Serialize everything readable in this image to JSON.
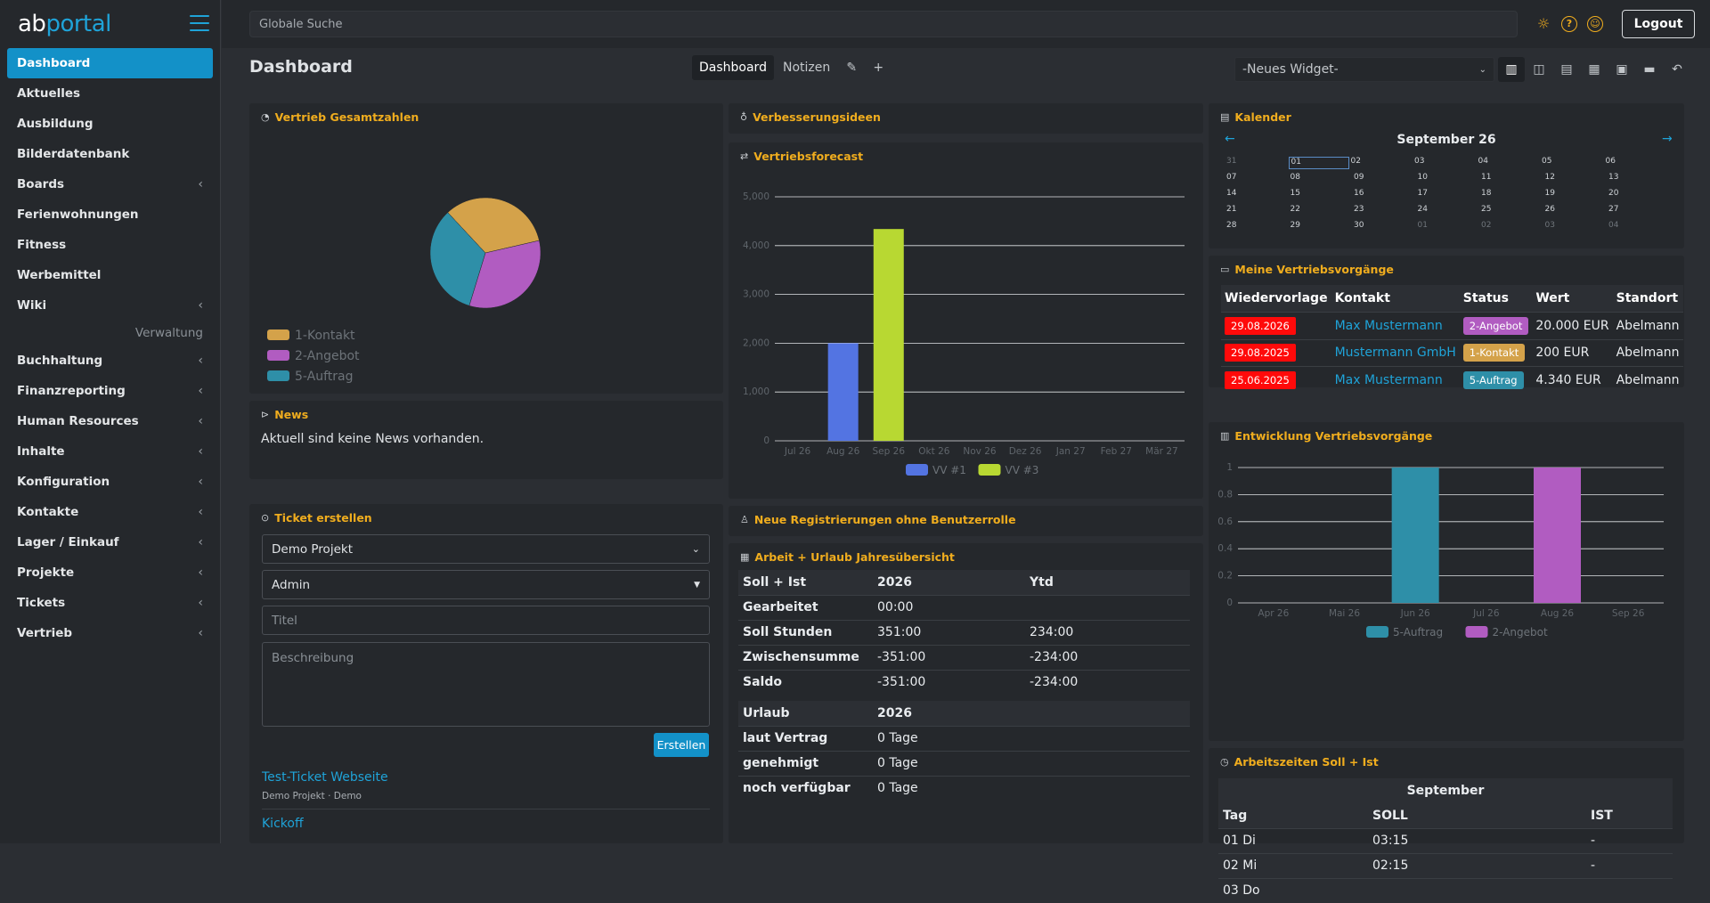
{
  "brand": {
    "part1": "ab",
    "part2": "portal"
  },
  "nav": {
    "items": [
      {
        "label": "Dashboard",
        "active": true,
        "chevron": false
      },
      {
        "label": "Aktuelles",
        "chevron": false
      },
      {
        "label": "Ausbildung",
        "chevron": false
      },
      {
        "label": "Bilderdatenbank",
        "chevron": false
      },
      {
        "label": "Boards",
        "chevron": true
      },
      {
        "label": "Ferienwohnungen",
        "chevron": false
      },
      {
        "label": "Fitness",
        "chevron": false
      },
      {
        "label": "Werbemittel",
        "chevron": false
      },
      {
        "label": "Wiki",
        "chevron": true
      }
    ],
    "section_label": "Verwaltung",
    "admin_items": [
      {
        "label": "Buchhaltung"
      },
      {
        "label": "Finanzreporting"
      },
      {
        "label": "Human Resources"
      },
      {
        "label": "Inhalte"
      },
      {
        "label": "Konfiguration"
      },
      {
        "label": "Kontakte"
      },
      {
        "label": "Lager / Einkauf"
      },
      {
        "label": "Projekte"
      },
      {
        "label": "Tickets"
      },
      {
        "label": "Vertrieb"
      }
    ]
  },
  "topbar": {
    "search_placeholder": "Globale Suche",
    "logout_label": "Logout"
  },
  "header": {
    "title": "Dashboard",
    "tabs": [
      {
        "label": "Dashboard",
        "active": true
      },
      {
        "label": "Notizen"
      }
    ],
    "widget_select": "-Neues Widget-"
  },
  "widgets": {
    "vertrieb_gesamt": {
      "title": "Vertrieb Gesamtzahlen"
    },
    "news": {
      "title": "News",
      "text": "Aktuell sind keine News vorhanden."
    },
    "ticket": {
      "title": "Ticket erstellen",
      "project": "Demo Projekt",
      "assignee": "Admin",
      "title_placeholder": "Titel",
      "desc_placeholder": "Beschreibung",
      "submit_label": "Erstellen",
      "entries": [
        {
          "title": "Test-Ticket Webseite",
          "meta": "Demo Projekt · Demo"
        },
        {
          "title": "Kickoff",
          "meta": ""
        }
      ]
    },
    "verbesserungsideen": {
      "title": "Verbesserungsideen"
    },
    "forecast": {
      "title": "Vertriebsforecast"
    },
    "registrierungen": {
      "title": "Neue Registrierungen ohne Benutzerrolle"
    },
    "arbeit_urlaub": {
      "title": "Arbeit + Urlaub Jahresübersicht",
      "work_header": [
        "Soll + Ist",
        "2026",
        "Ytd"
      ],
      "work_rows": [
        [
          "Gearbeitet",
          "00:00",
          ""
        ],
        [
          "Soll Stunden",
          "351:00",
          "234:00"
        ],
        [
          "Zwischensumme",
          "-351:00",
          "-234:00"
        ],
        [
          "Saldo",
          "-351:00",
          "-234:00"
        ]
      ],
      "vac_header": [
        "Urlaub",
        "2026"
      ],
      "vac_rows": [
        [
          "laut Vertrag",
          "0 Tage"
        ],
        [
          "genehmigt",
          "0 Tage"
        ],
        [
          "noch verfügbar",
          "0 Tage"
        ]
      ]
    },
    "kalender": {
      "title": "Kalender",
      "month": "September 26",
      "prev_icon": "←",
      "next_icon": "→",
      "weeks": [
        [
          "31",
          "01",
          "02",
          "03",
          "04",
          "05",
          "06"
        ],
        [
          "07",
          "08",
          "09",
          "10",
          "11",
          "12",
          "13"
        ],
        [
          "14",
          "15",
          "16",
          "17",
          "18",
          "19",
          "20"
        ],
        [
          "21",
          "22",
          "23",
          "24",
          "25",
          "26",
          "27"
        ],
        [
          "28",
          "29",
          "30",
          "01",
          "02",
          "03",
          "04"
        ]
      ]
    },
    "vorgaenge": {
      "title": "Meine Vertriebsvorgänge",
      "columns": [
        "Wiedervorlage",
        "Kontakt",
        "Status",
        "Wert",
        "Standort"
      ],
      "rows": [
        {
          "date": "29.08.2026",
          "contact": "Max Mustermann",
          "status": "2-Angebot",
          "status_color": "#b15cc1",
          "value": "20.000 EUR",
          "location": "Abelmann"
        },
        {
          "date": "29.08.2025",
          "contact": "Mustermann GmbH",
          "status": "1-Kontakt",
          "status_color": "#d4a24a",
          "value": "200 EUR",
          "location": "Abelmann"
        },
        {
          "date": "25.06.2025",
          "contact": "Max Mustermann",
          "status": "5-Auftrag",
          "status_color": "#2e8fa8",
          "value": "4.340 EUR",
          "location": "Abelmann"
        }
      ]
    },
    "entwicklung": {
      "title": "Entwicklung Vertriebsvorgänge"
    },
    "arbeitszeiten": {
      "title": "Arbeitszeiten Soll + Ist",
      "month": "September",
      "columns": [
        "Tag",
        "SOLL",
        "IST"
      ],
      "rows": [
        [
          "01 Di",
          "03:15",
          "-"
        ],
        [
          "02 Mi",
          "02:15",
          "-"
        ],
        [
          "03 Do",
          "",
          ""
        ]
      ]
    }
  },
  "colors": {
    "accent": "#f0ad1e",
    "primary": "#1391c8",
    "link": "#1fa3d8"
  },
  "chart_data": [
    {
      "type": "pie",
      "slices": [
        {
          "label": "1-Kontakt",
          "value": 1,
          "color": "#d4a24a"
        },
        {
          "label": "2-Angebot",
          "value": 1,
          "color": "#b15cc1"
        },
        {
          "label": "5-Auftrag",
          "value": 1,
          "color": "#2e8fa8"
        }
      ],
      "legend": [
        "1-Kontakt",
        "2-Angebot",
        "5-Auftrag"
      ]
    },
    {
      "type": "bar",
      "categories": [
        "Jul 26",
        "Aug 26",
        "Sep 26",
        "Okt 26",
        "Nov 26",
        "Dez 26",
        "Jan 27",
        "Feb 27",
        "Mär 27"
      ],
      "series": [
        {
          "name": "VV #1",
          "color": "#5374e2",
          "values": [
            0,
            2000,
            0,
            0,
            0,
            0,
            0,
            0,
            0
          ]
        },
        {
          "name": "VV #3",
          "color": "#b8d832",
          "values": [
            0,
            0,
            4340,
            0,
            0,
            0,
            0,
            0,
            0
          ]
        }
      ],
      "ylim": [
        0,
        5000
      ],
      "yticks": [
        "0",
        "1,000",
        "2,000",
        "3,000",
        "4,000",
        "5,000"
      ]
    },
    {
      "type": "bar",
      "categories": [
        "Apr 26",
        "Mai 26",
        "Jun 26",
        "Jul 26",
        "Aug 26",
        "Sep 26"
      ],
      "series": [
        {
          "name": "5-Auftrag",
          "color": "#2e8fa8",
          "values": [
            0,
            0,
            1,
            0,
            0,
            0
          ]
        },
        {
          "name": "2-Angebot",
          "color": "#b15cc1",
          "values": [
            0,
            0,
            0,
            0,
            1,
            0
          ]
        }
      ],
      "ylim": [
        0,
        1
      ],
      "yticks": [
        "0",
        "0.2",
        "0.4",
        "0.6",
        "0.8",
        "1"
      ]
    }
  ]
}
